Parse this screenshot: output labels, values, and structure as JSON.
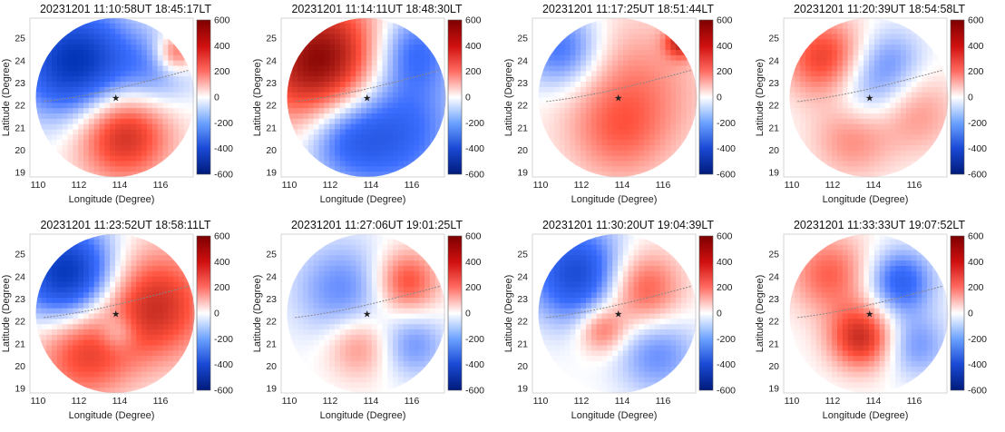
{
  "chart_data": [
    {
      "type": "heatmap",
      "title": "20231201 11:10:58UT 18:45:17LT",
      "xlabel": "Longitude (Degree)",
      "ylabel": "Latitude (Degree)",
      "xticks": [
        110,
        112,
        114,
        116
      ],
      "yticks": [
        19,
        20,
        21,
        22,
        23,
        24,
        25
      ],
      "xlim": [
        109.6,
        117.6
      ],
      "ylim": [
        18.8,
        25.9
      ],
      "colorbar": {
        "ticks": [
          600,
          400,
          200,
          0,
          -200,
          -400,
          -600
        ],
        "range": [
          -600,
          600
        ],
        "colormap": "blue-white-red"
      }
    },
    {
      "type": "heatmap",
      "title": "20231201 11:14:11UT 18:48:30LT",
      "xlabel": "Longitude (Degree)",
      "ylabel": "Latitude (Degree)",
      "xticks": [
        110,
        112,
        114,
        116
      ],
      "yticks": [
        19,
        20,
        21,
        22,
        23,
        24,
        25
      ],
      "xlim": [
        109.6,
        117.6
      ],
      "ylim": [
        18.8,
        25.9
      ],
      "colorbar": {
        "ticks": [
          600,
          400,
          200,
          0,
          -200,
          -400,
          -600
        ],
        "range": [
          -600,
          600
        ],
        "colormap": "blue-white-red"
      }
    },
    {
      "type": "heatmap",
      "title": "20231201 11:17:25UT 18:51:44LT",
      "xlabel": "Longitude (Degree)",
      "ylabel": "Latitude (Degree)",
      "xticks": [
        110,
        112,
        114,
        116
      ],
      "yticks": [
        19,
        20,
        21,
        22,
        23,
        24,
        25
      ],
      "xlim": [
        109.6,
        117.6
      ],
      "ylim": [
        18.8,
        25.9
      ],
      "colorbar": {
        "ticks": [
          600,
          400,
          200,
          0,
          -200,
          -400,
          -600
        ],
        "range": [
          -600,
          600
        ],
        "colormap": "blue-white-red"
      }
    },
    {
      "type": "heatmap",
      "title": "20231201 11:20:39UT 18:54:58LT",
      "xlabel": "Longitude (Degree)",
      "ylabel": "Latitude (Degree)",
      "xticks": [
        110,
        112,
        114,
        116
      ],
      "yticks": [
        19,
        20,
        21,
        22,
        23,
        24,
        25
      ],
      "xlim": [
        109.6,
        117.6
      ],
      "ylim": [
        18.8,
        25.9
      ],
      "colorbar": {
        "ticks": [
          600,
          400,
          200,
          0,
          -200,
          -400,
          -600
        ],
        "range": [
          -600,
          600
        ],
        "colormap": "blue-white-red"
      }
    },
    {
      "type": "heatmap",
      "title": "20231201 11:23:52UT 18:58:11LT",
      "xlabel": "Longitude (Degree)",
      "ylabel": "Latitude (Degree)",
      "xticks": [
        110,
        112,
        114,
        116
      ],
      "yticks": [
        19,
        20,
        21,
        22,
        23,
        24,
        25
      ],
      "xlim": [
        109.6,
        117.6
      ],
      "ylim": [
        18.8,
        25.9
      ],
      "colorbar": {
        "ticks": [
          600,
          400,
          200,
          0,
          -200,
          -400,
          -600
        ],
        "range": [
          -600,
          600
        ],
        "colormap": "blue-white-red"
      }
    },
    {
      "type": "heatmap",
      "title": "20231201 11:27:06UT 19:01:25LT",
      "xlabel": "Longitude (Degree)",
      "ylabel": "Latitude (Degree)",
      "xticks": [
        110,
        112,
        114,
        116
      ],
      "yticks": [
        19,
        20,
        21,
        22,
        23,
        24,
        25
      ],
      "xlim": [
        109.6,
        117.6
      ],
      "ylim": [
        18.8,
        25.9
      ],
      "colorbar": {
        "ticks": [
          600,
          400,
          200,
          0,
          -200,
          -400,
          -600
        ],
        "range": [
          -600,
          600
        ],
        "colormap": "blue-white-red"
      }
    },
    {
      "type": "heatmap",
      "title": "20231201 11:30:20UT 19:04:39LT",
      "xlabel": "Longitude (Degree)",
      "ylabel": "Latitude (Degree)",
      "xticks": [
        110,
        112,
        114,
        116
      ],
      "yticks": [
        19,
        20,
        21,
        22,
        23,
        24,
        25
      ],
      "xlim": [
        109.6,
        117.6
      ],
      "ylim": [
        18.8,
        25.9
      ],
      "colorbar": {
        "ticks": [
          600,
          400,
          200,
          0,
          -200,
          -400,
          -600
        ],
        "range": [
          -600,
          600
        ],
        "colormap": "blue-white-red"
      }
    },
    {
      "type": "heatmap",
      "title": "20231201 11:33:33UT 19:07:52LT",
      "xlabel": "Longitude (Degree)",
      "ylabel": "Latitude (Degree)",
      "xticks": [
        110,
        112,
        114,
        116
      ],
      "yticks": [
        19,
        20,
        21,
        22,
        23,
        24,
        25
      ],
      "xlim": [
        109.6,
        117.6
      ],
      "ylim": [
        18.8,
        25.9
      ],
      "colorbar": {
        "ticks": [
          600,
          400,
          200,
          0,
          -200,
          -400,
          -600
        ],
        "range": [
          -600,
          600
        ],
        "colormap": "blue-white-red"
      }
    }
  ]
}
